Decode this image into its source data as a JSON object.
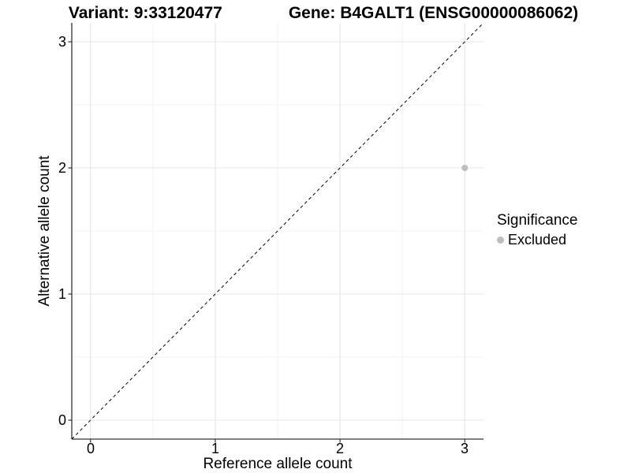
{
  "titles": {
    "variant": "Variant: 9:33120477",
    "gene": "Gene: B4GALT1 (ENSG00000086062)"
  },
  "chart_data": {
    "type": "scatter",
    "title_left": "Variant: 9:33120477",
    "title_right": "Gene: B4GALT1 (ENSG00000086062)",
    "xlabel": "Reference allele count",
    "ylabel": "Alternative allele count",
    "xlim": [
      -0.15,
      3.15
    ],
    "ylim": [
      -0.15,
      3.15
    ],
    "x_ticks": [
      0,
      1,
      2,
      3
    ],
    "y_ticks": [
      0,
      1,
      2,
      3
    ],
    "grid": "major and minor gridlines on, white background",
    "points": [
      {
        "x": 3,
        "y": 2,
        "series": "Excluded",
        "color": "#bebebe",
        "radius": 4
      }
    ],
    "reference_line": {
      "type": "identity y=x",
      "style": "dashed",
      "color": "#000000",
      "x0": -0.15,
      "y0": -0.15,
      "x1": 3.15,
      "y1": 3.15
    },
    "legend": {
      "title": "Significance",
      "position": "right",
      "entries": [
        {
          "label": "Excluded",
          "color": "#bebebe"
        }
      ]
    },
    "colors": {
      "axis_line": "#333333",
      "tick_mark": "#333333",
      "grid_major": "#e5e5e5",
      "grid_minor": "#f0f0f0",
      "text": "#000000",
      "point": "#bebebe"
    }
  }
}
